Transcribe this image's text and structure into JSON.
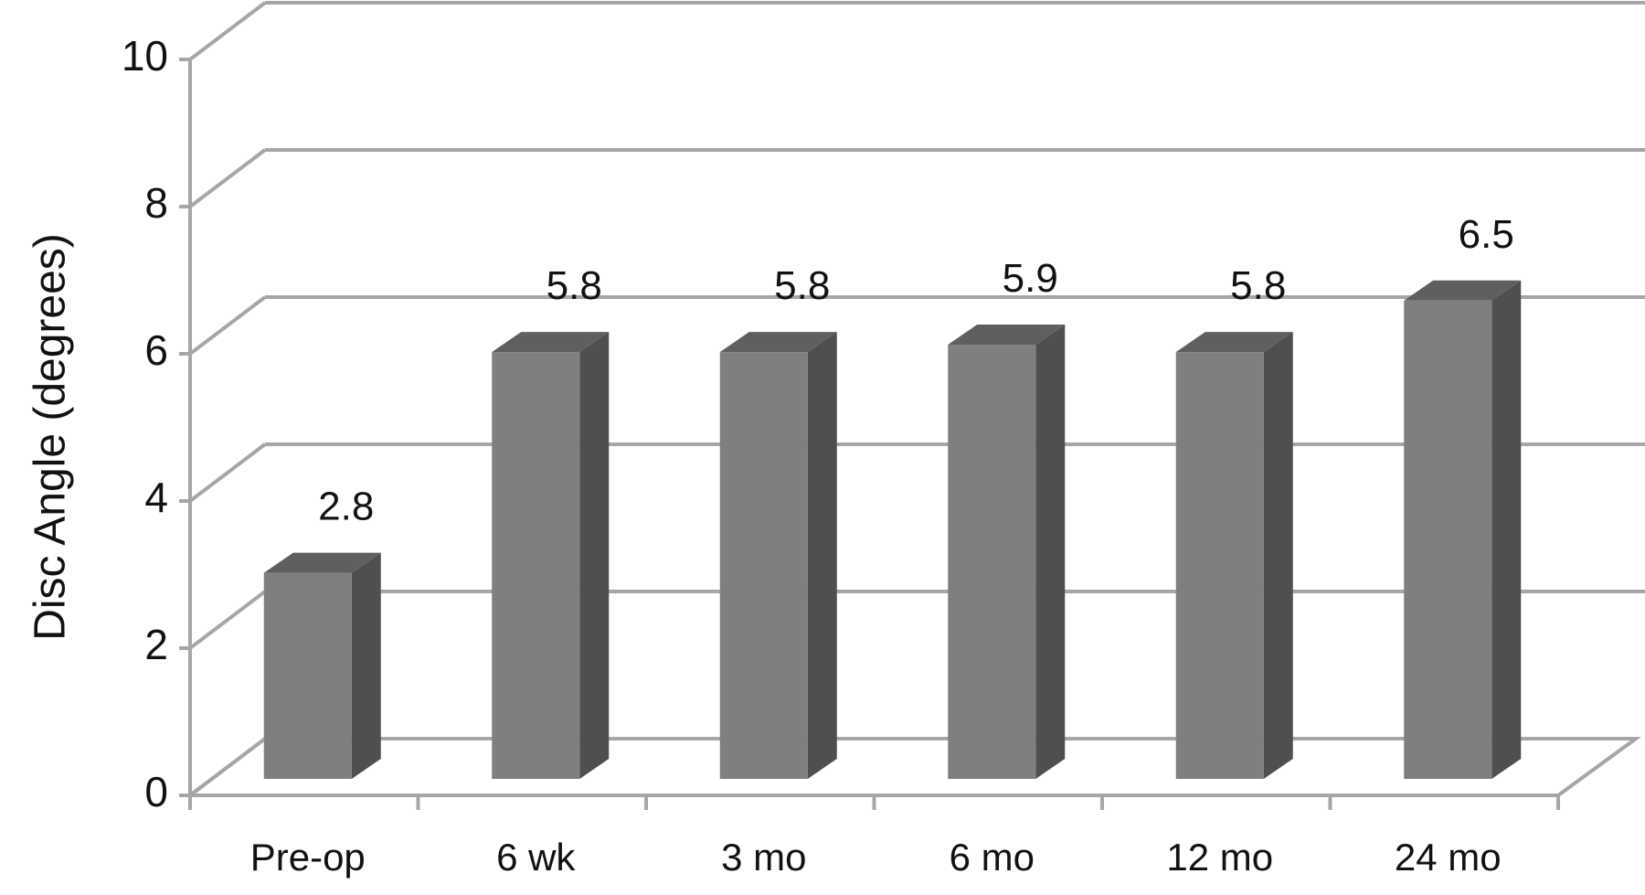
{
  "chart_data": {
    "type": "bar",
    "style": "3d-columns",
    "categories": [
      "Pre-op",
      "6 wk",
      "3 mo",
      "6 mo",
      "12 mo",
      "24 mo"
    ],
    "values": [
      2.8,
      5.8,
      5.8,
      5.9,
      5.8,
      6.5
    ],
    "data_labels": [
      "2.8",
      "5.8",
      "5.8",
      "5.9",
      "5.8",
      "6.5"
    ],
    "title": "",
    "xlabel": "",
    "ylabel": "Disc Angle (degrees)",
    "ylim": [
      0,
      10
    ],
    "yticks": [
      0,
      2,
      4,
      6,
      8,
      10
    ],
    "grid": true,
    "legend": "none",
    "colors": {
      "bar_front": "#7f7f7f",
      "bar_side": "#4f4f4f",
      "bar_top": "#5f5f5f",
      "gridline": "#a6a6a6",
      "text": "#111111"
    }
  }
}
